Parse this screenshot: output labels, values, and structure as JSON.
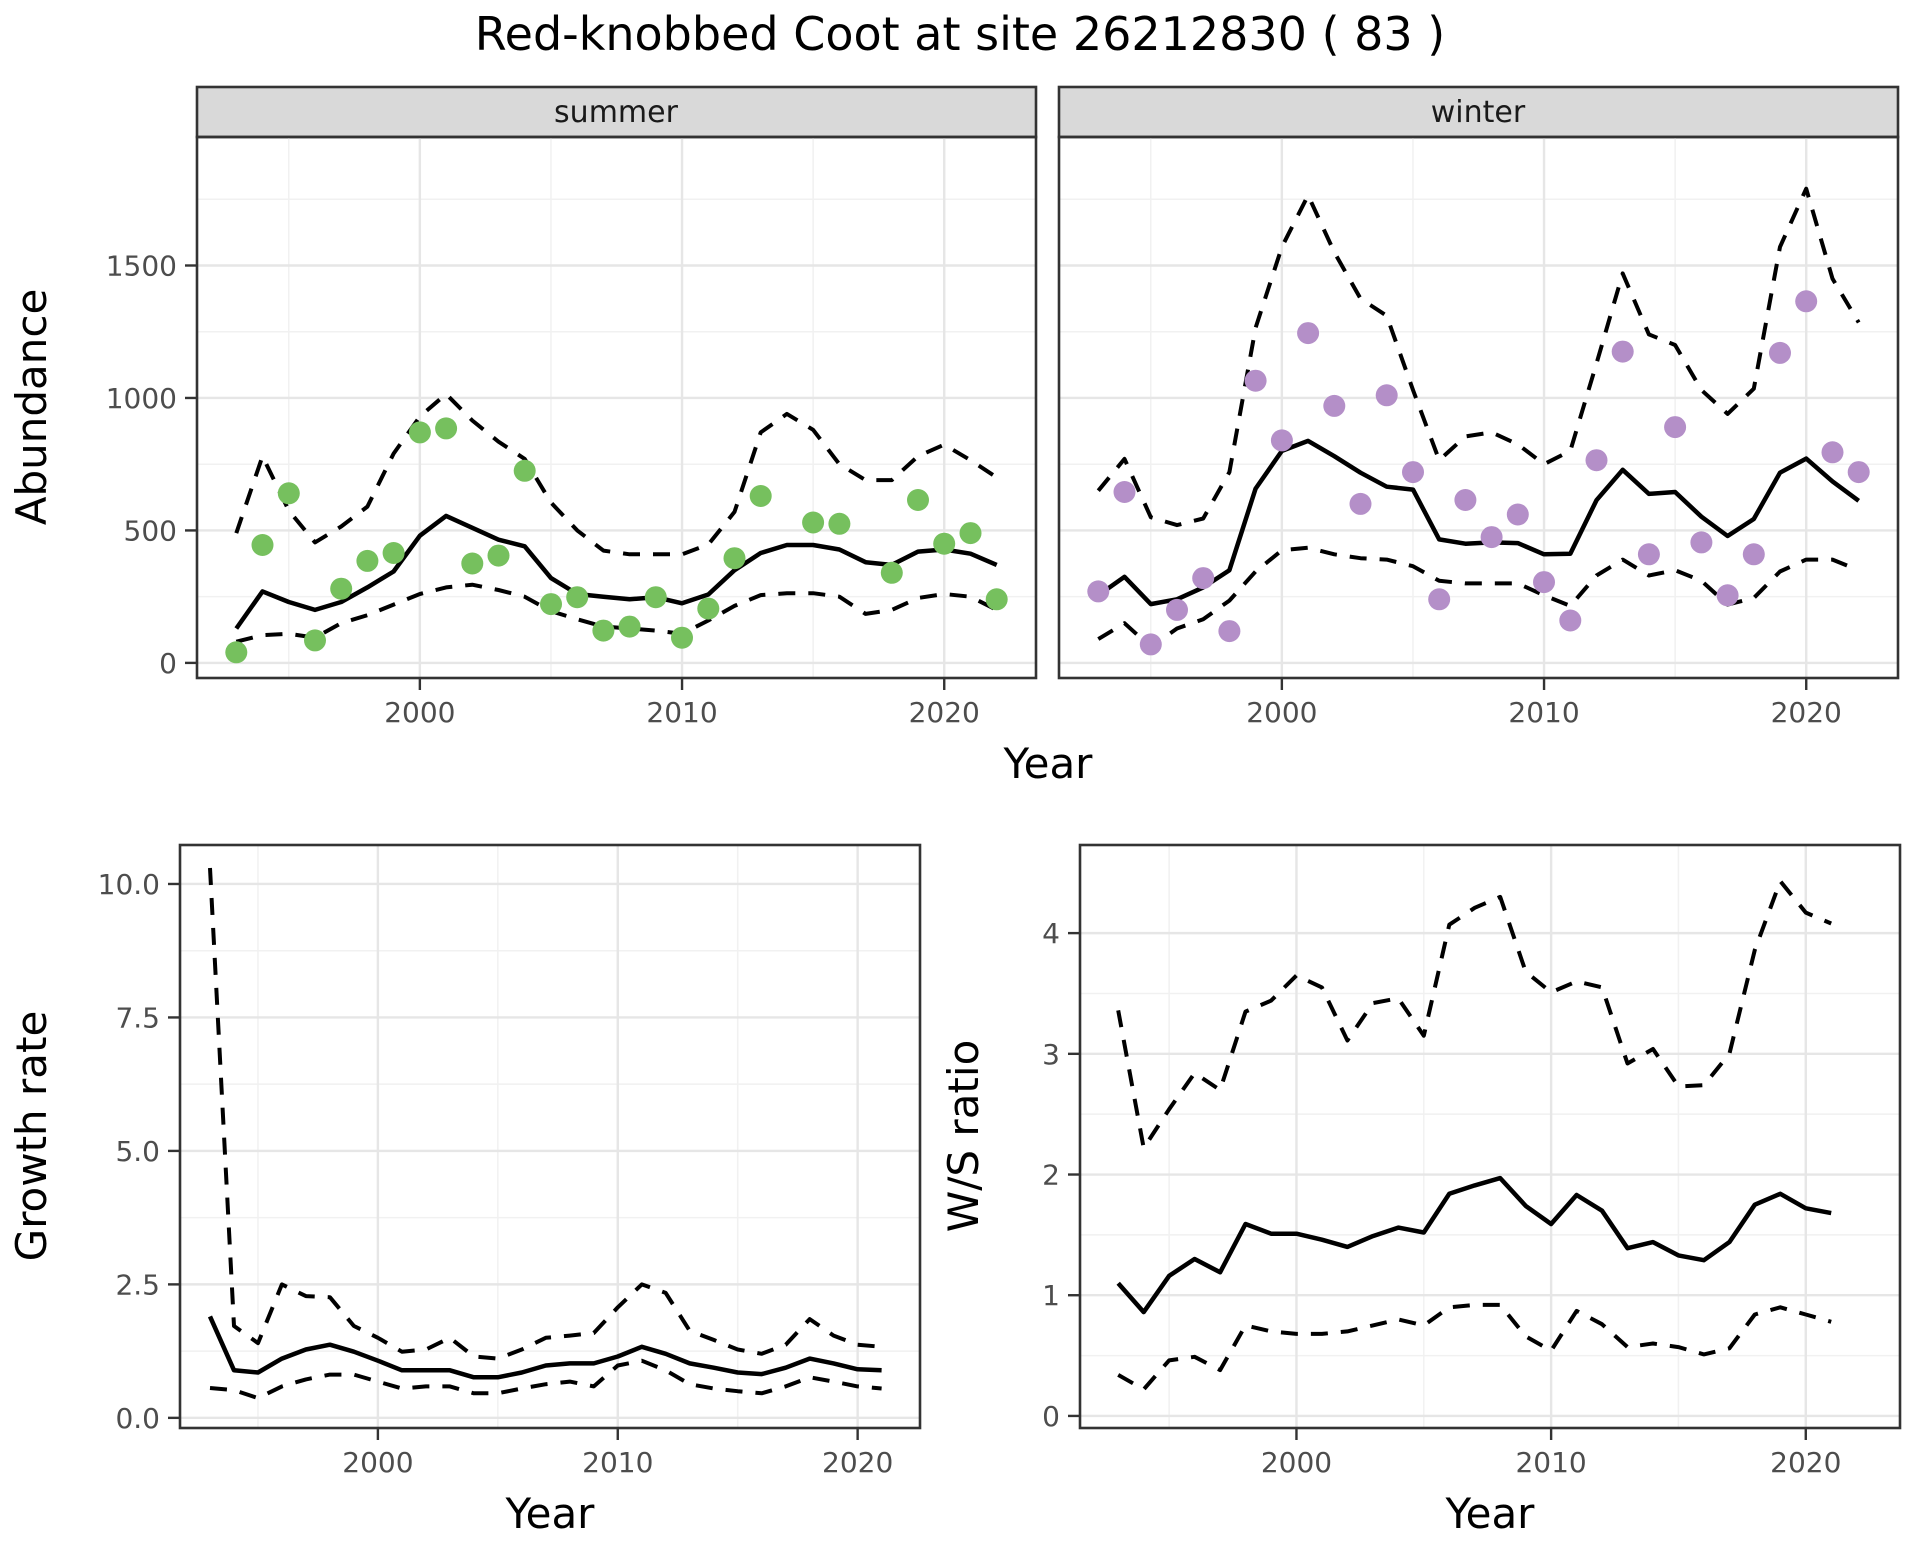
{
  "title": "Red-knobbed Coot at site 26212830 ( 83 )",
  "colors": {
    "summer_point": "#76c05e",
    "winter_point": "#b48fc8",
    "fit_line": "#000000",
    "band_line": "#000000",
    "grid_major": "#e6e6e6",
    "grid_minor": "#f1f1f1",
    "strip_bg": "#d9d9d9",
    "panel_border": "#333333",
    "tick_label": "#4d4d4d"
  },
  "chart_data": [
    {
      "type": "line",
      "name": "abundance-facet-chart",
      "facets": [
        "summer",
        "winter"
      ],
      "xlabel": "Year",
      "ylabel": "Abundance",
      "years": [
        1993,
        1994,
        1995,
        1996,
        1997,
        1998,
        1999,
        2000,
        2001,
        2002,
        2003,
        2004,
        2005,
        2006,
        2007,
        2008,
        2009,
        2010,
        2011,
        2012,
        2013,
        2014,
        2015,
        2016,
        2017,
        2018,
        2019,
        2020,
        2021,
        2022
      ],
      "xlim": [
        1991.5,
        2023.5
      ],
      "ylim": [
        -57,
        1985
      ],
      "xticks": {
        "values": [
          2000,
          2010,
          2020
        ],
        "labels": [
          "2000",
          "2010",
          "2020"
        ],
        "minor": [
          1995,
          2005,
          2015
        ]
      },
      "yticks": {
        "values": [
          0,
          500,
          1000,
          1500
        ],
        "labels": [
          "0",
          "500",
          "1000",
          "1500"
        ],
        "minor": [
          250,
          750,
          1250,
          1750
        ]
      },
      "legend_position": "none",
      "grid": true,
      "series_by_facet": {
        "summer": {
          "observed": [
            40,
            445,
            640,
            85,
            280,
            385,
            415,
            870,
            885,
            375,
            405,
            725,
            222,
            248,
            122,
            137,
            248,
            95,
            205,
            395,
            630,
            null,
            530,
            525,
            null,
            340,
            615,
            450,
            490,
            240
          ],
          "fit": [
            130,
            270,
            230,
            200,
            230,
            285,
            345,
            480,
            555,
            510,
            465,
            440,
            320,
            260,
            250,
            240,
            248,
            225,
            258,
            350,
            415,
            445,
            445,
            428,
            380,
            370,
            420,
            428,
            412,
            370
          ],
          "lower": [
            80,
            105,
            110,
            95,
            150,
            180,
            220,
            260,
            285,
            295,
            275,
            250,
            195,
            165,
            137,
            130,
            122,
            110,
            160,
            215,
            256,
            263,
            263,
            250,
            185,
            200,
            245,
            260,
            250,
            200
          ],
          "upper": [
            490,
            780,
            575,
            455,
            515,
            590,
            790,
            930,
            1015,
            915,
            835,
            770,
            605,
            500,
            424,
            410,
            410,
            410,
            447,
            570,
            870,
            940,
            880,
            750,
            690,
            690,
            780,
            824,
            765,
            700
          ]
        },
        "winter": {
          "observed": [
            270,
            645,
            70,
            200,
            320,
            120,
            1065,
            840,
            1245,
            970,
            600,
            1010,
            720,
            240,
            615,
            475,
            560,
            305,
            160,
            765,
            1175,
            410,
            890,
            455,
            255,
            410,
            1170,
            1365,
            795,
            720
          ],
          "fit": [
            255,
            325,
            222,
            240,
            285,
            350,
            658,
            800,
            838,
            780,
            718,
            665,
            654,
            466,
            450,
            455,
            452,
            410,
            412,
            614,
            729,
            638,
            645,
            552,
            479,
            543,
            718,
            771,
            685,
            612
          ],
          "lower": [
            90,
            150,
            60,
            130,
            165,
            235,
            345,
            425,
            435,
            410,
            395,
            390,
            365,
            310,
            300,
            300,
            300,
            255,
            215,
            330,
            390,
            330,
            350,
            310,
            220,
            245,
            345,
            390,
            390,
            350
          ],
          "upper": [
            650,
            770,
            550,
            520,
            545,
            720,
            1265,
            1570,
            1765,
            1550,
            1375,
            1310,
            1030,
            765,
            855,
            870,
            825,
            750,
            800,
            1130,
            1470,
            1240,
            1200,
            1030,
            940,
            1035,
            1570,
            1790,
            1450,
            1285
          ]
        }
      }
    },
    {
      "type": "line",
      "name": "growth-rate-chart",
      "xlabel": "Year",
      "ylabel": "Growth rate",
      "years": [
        1993,
        1994,
        1995,
        1996,
        1997,
        1998,
        1999,
        2000,
        2001,
        2002,
        2003,
        2004,
        2005,
        2006,
        2007,
        2008,
        2009,
        2010,
        2011,
        2012,
        2013,
        2014,
        2015,
        2016,
        2017,
        2018,
        2019,
        2020,
        2021
      ],
      "xlim": [
        1991.75,
        2022.6
      ],
      "ylim": [
        -0.19,
        10.73
      ],
      "xticks": {
        "values": [
          2000,
          2010,
          2020
        ],
        "labels": [
          "2000",
          "2010",
          "2020"
        ],
        "minor": [
          1995,
          2005,
          2015
        ]
      },
      "yticks": {
        "values": [
          0,
          2.5,
          5,
          7.5,
          10
        ],
        "labels": [
          "0.0",
          "2.5",
          "5.0",
          "7.5",
          "10.0"
        ],
        "minor": [
          1.25,
          3.75,
          6.25,
          8.75
        ]
      },
      "legend_position": "none",
      "grid": true,
      "series": {
        "fit": [
          1.9,
          0.89,
          0.85,
          1.11,
          1.28,
          1.37,
          1.24,
          1.07,
          0.89,
          0.89,
          0.89,
          0.76,
          0.76,
          0.85,
          0.98,
          1.02,
          1.02,
          1.15,
          1.33,
          1.2,
          1.02,
          0.94,
          0.85,
          0.82,
          0.94,
          1.11,
          1.02,
          0.91,
          0.89
        ],
        "lower": [
          0.56,
          0.52,
          0.37,
          0.59,
          0.72,
          0.81,
          0.81,
          0.68,
          0.55,
          0.59,
          0.59,
          0.46,
          0.46,
          0.55,
          0.63,
          0.68,
          0.59,
          0.98,
          1.07,
          0.89,
          0.63,
          0.55,
          0.5,
          0.46,
          0.59,
          0.76,
          0.68,
          0.59,
          0.55
        ],
        "upper": [
          10.3,
          1.72,
          1.4,
          2.5,
          2.28,
          2.26,
          1.72,
          1.5,
          1.24,
          1.28,
          1.5,
          1.15,
          1.11,
          1.28,
          1.5,
          1.54,
          1.59,
          2.07,
          2.5,
          2.34,
          1.63,
          1.46,
          1.28,
          1.2,
          1.37,
          1.85,
          1.54,
          1.37,
          1.33
        ]
      }
    },
    {
      "type": "line",
      "name": "winter-summer-ratio-chart",
      "xlabel": "Year",
      "ylabel": "W/S ratio",
      "years": [
        1993,
        1994,
        1995,
        1996,
        1997,
        1998,
        1999,
        2000,
        2001,
        2002,
        2003,
        2004,
        2005,
        2006,
        2007,
        2008,
        2009,
        2010,
        2011,
        2012,
        2013,
        2014,
        2015,
        2016,
        2017,
        2018,
        2019,
        2020,
        2021
      ],
      "xlim": [
        1991.5,
        2023.7
      ],
      "ylim": [
        -0.1,
        4.73
      ],
      "xticks": {
        "values": [
          2000,
          2010,
          2020
        ],
        "labels": [
          "2000",
          "2010",
          "2020"
        ],
        "minor": [
          1995,
          2005,
          2015
        ]
      },
      "yticks": {
        "values": [
          0,
          1,
          2,
          3,
          4
        ],
        "labels": [
          "0",
          "1",
          "2",
          "3",
          "4"
        ],
        "minor": [
          0.5,
          1.5,
          2.5,
          3.5
        ]
      },
      "legend_position": "none",
      "grid": true,
      "series": {
        "fit": [
          1.1,
          0.86,
          1.16,
          1.3,
          1.19,
          1.59,
          1.51,
          1.51,
          1.46,
          1.4,
          1.49,
          1.56,
          1.52,
          1.84,
          1.91,
          1.97,
          1.74,
          1.59,
          1.83,
          1.7,
          1.39,
          1.44,
          1.33,
          1.29,
          1.44,
          1.75,
          1.84,
          1.72,
          1.68
        ],
        "lower": [
          0.34,
          0.22,
          0.46,
          0.49,
          0.38,
          0.75,
          0.7,
          0.68,
          0.68,
          0.7,
          0.75,
          0.8,
          0.75,
          0.9,
          0.92,
          0.92,
          0.66,
          0.54,
          0.87,
          0.76,
          0.57,
          0.6,
          0.57,
          0.51,
          0.56,
          0.84,
          0.9,
          0.84,
          0.78
        ],
        "upper": [
          3.36,
          2.22,
          2.54,
          2.84,
          2.7,
          3.35,
          3.44,
          3.65,
          3.55,
          3.11,
          3.42,
          3.46,
          3.15,
          4.07,
          4.21,
          4.3,
          3.68,
          3.51,
          3.6,
          3.55,
          2.92,
          3.04,
          2.73,
          2.74,
          3.0,
          3.86,
          4.43,
          4.17,
          4.08
        ]
      }
    }
  ]
}
